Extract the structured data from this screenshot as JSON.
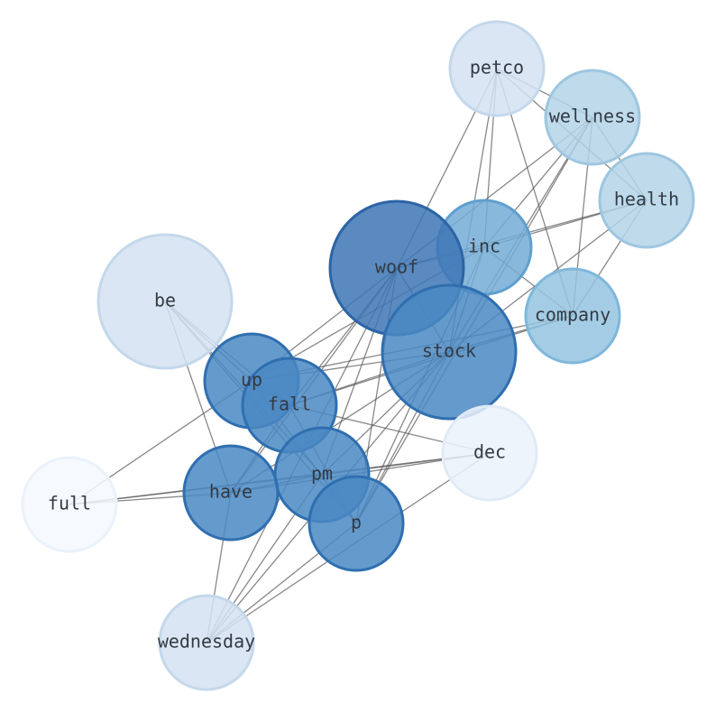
{
  "nodes": [
    {
      "label": "petco"
    },
    {
      "label": "wellness"
    },
    {
      "label": "health"
    },
    {
      "label": "inc"
    },
    {
      "label": "woof"
    },
    {
      "label": "company"
    },
    {
      "label": "be"
    },
    {
      "label": "stock"
    },
    {
      "label": "up"
    },
    {
      "label": "fall"
    },
    {
      "label": "dec"
    },
    {
      "label": "pm"
    },
    {
      "label": "full"
    },
    {
      "label": "have"
    },
    {
      "label": "p"
    },
    {
      "label": "wednesday"
    }
  ]
}
